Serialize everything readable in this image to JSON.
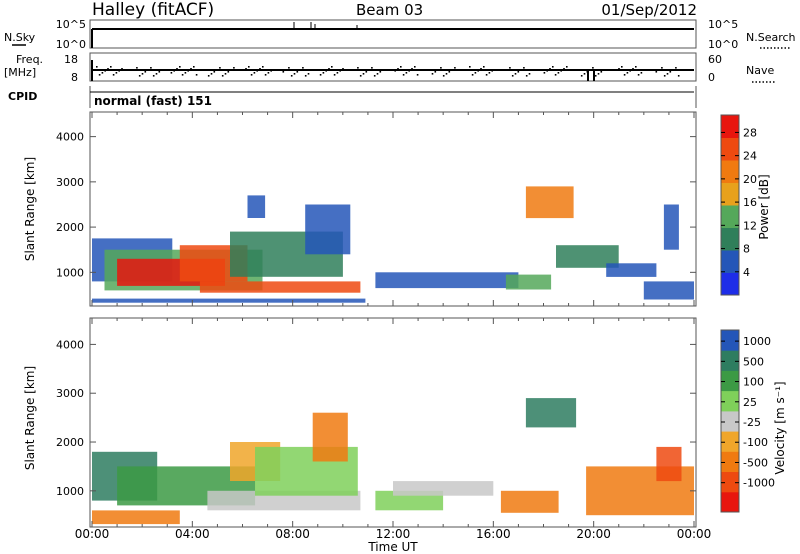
{
  "header": {
    "station": "Halley (fitACF)",
    "beam": "Beam 03",
    "date": "01/Sep/2012"
  },
  "colors": {
    "power_scale": [
      "#1e2de8",
      "#2456b8",
      "#2f7f5a",
      "#55a85a",
      "#e8a11c",
      "#f07a10",
      "#ee4a10",
      "#e8160e"
    ],
    "velocity_scale": [
      "#e8160e",
      "#ee4a10",
      "#f07a10",
      "#f0a62a",
      "#c8c8c8",
      "#7fd05a",
      "#3c9a44",
      "#2e7d60",
      "#2456b8"
    ]
  },
  "nsky_panel": {
    "label": "N.Sky",
    "right_label": "N.Search",
    "left_ticks": [
      "10^5",
      "10^0"
    ],
    "right_ticks": [
      "10^5",
      "10^0"
    ]
  },
  "freq_panel": {
    "label_line1": "Freq.",
    "label_line2": "[MHz]",
    "left_ticks": [
      "18",
      "8"
    ],
    "right_ticks": [
      "60",
      "0"
    ],
    "right_label": "Nave"
  },
  "cpid_panel": {
    "label": "CPID",
    "value": "normal (fast) 151"
  },
  "chart_data": [
    {
      "type": "heatmap",
      "ylabel": "Slant Range [km]",
      "x_ticks": [
        "00:00",
        "04:00",
        "08:00",
        "12:00",
        "16:00",
        "20:00",
        "00:00"
      ],
      "y_ticks": [
        "1000",
        "2000",
        "3000",
        "4000"
      ],
      "ylim": [
        300,
        4500
      ],
      "colorbar_label": "Power [dB]",
      "colorbar_ticks": [
        "4",
        "8",
        "12",
        "16",
        "20",
        "24",
        "28"
      ],
      "colorbar_range": [
        0,
        31
      ]
    },
    {
      "type": "heatmap",
      "ylabel": "Slant Range [km]",
      "xlabel": "Time UT",
      "x_ticks": [
        "00:00",
        "04:00",
        "08:00",
        "12:00",
        "16:00",
        "20:00",
        "00:00"
      ],
      "y_ticks": [
        "1000",
        "2000",
        "3000",
        "4000"
      ],
      "ylim": [
        300,
        4500
      ],
      "colorbar_label": "Velocity [m s⁻¹]",
      "colorbar_ticks": [
        "1000",
        "500",
        "100",
        "25",
        "-25",
        "-100",
        "-500",
        "-1000"
      ]
    }
  ]
}
